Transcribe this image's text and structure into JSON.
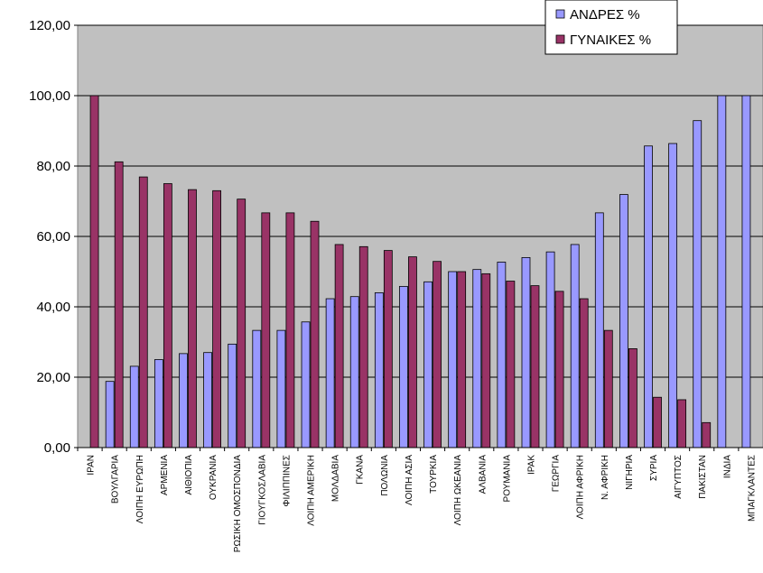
{
  "chart_data": {
    "type": "bar",
    "title": "",
    "xlabel": "",
    "ylabel": "",
    "ylim": [
      0,
      120
    ],
    "yticks": [
      "0,00",
      "20,00",
      "40,00",
      "60,00",
      "80,00",
      "100,00",
      "120,00"
    ],
    "grid": true,
    "legend_position": "top-right",
    "categories": [
      "ΙΡΑΝ",
      "ΒΟΥΛΓΑΡΙΑ",
      "ΛΟΙΠΗ ΕΥΡΩΠΗ",
      "ΑΡΜΕΝΙΑ",
      "ΑΙΘΙΟΠΙΑ",
      "ΟΥΚΡΑΝΙΑ",
      "ΡΩΣΙΚΗ ΟΜΟΣΠΟΝΔΙΑ",
      "ΓΙΟΥΓΚΟΣΛΑΒΙΑ",
      "ΦΙΛΙΠΠΙΝΕΣ",
      "ΛΟΙΠΗ ΑΜΕΡΙΚΗ",
      "ΜΟΛΔΑΒΙΑ",
      "ΓΚΑΝΑ",
      "ΠΟΛΩΝΙΑ",
      "ΛΟΙΠΗ ΑΣΙΑ",
      "ΤΟΥΡΚΙΑ",
      "ΛΟΙΠΗ ΩΚΕΑΝΙΑ",
      "ΑΛΒΑΝΙΑ",
      "ΡΟΥΜΑΝΙΑ",
      "ΙΡΑΚ",
      "ΓΕΩΡΓΙΑ",
      "ΛΟΙΠΗ ΑΦΡΙΚΗ",
      "Ν. ΑΦΡΙΚΗ",
      "ΝΙΓΗΡΙΑ",
      "ΣΥΡΙΑ",
      "ΑΙΓΥΠΤΟΣ",
      "ΠΑΚΙΣΤΑΝ",
      "ΙΝΔΙΑ",
      "ΜΠΑΓΚΛΑΝΤΕΣ"
    ],
    "series": [
      {
        "name": "ΑΝΔΡΕΣ %",
        "color": "#9999ff",
        "values": [
          0,
          18.8,
          23.1,
          25.0,
          26.7,
          27.0,
          29.4,
          33.3,
          33.3,
          35.7,
          42.3,
          42.9,
          44.0,
          45.8,
          47.1,
          50.0,
          50.6,
          52.7,
          54.0,
          55.6,
          57.7,
          66.7,
          71.9,
          85.7,
          86.4,
          92.9,
          100.0,
          100.0
        ]
      },
      {
        "name": "ΓΥΝΑΙΚΕΣ %",
        "color": "#993366",
        "values": [
          100.0,
          81.2,
          76.9,
          75.0,
          73.3,
          73.0,
          70.6,
          66.7,
          66.7,
          64.3,
          57.7,
          57.1,
          56.0,
          54.2,
          52.9,
          50.0,
          49.4,
          47.3,
          46.0,
          44.4,
          42.3,
          33.3,
          28.1,
          14.3,
          13.6,
          7.1,
          0,
          0
        ]
      }
    ]
  }
}
